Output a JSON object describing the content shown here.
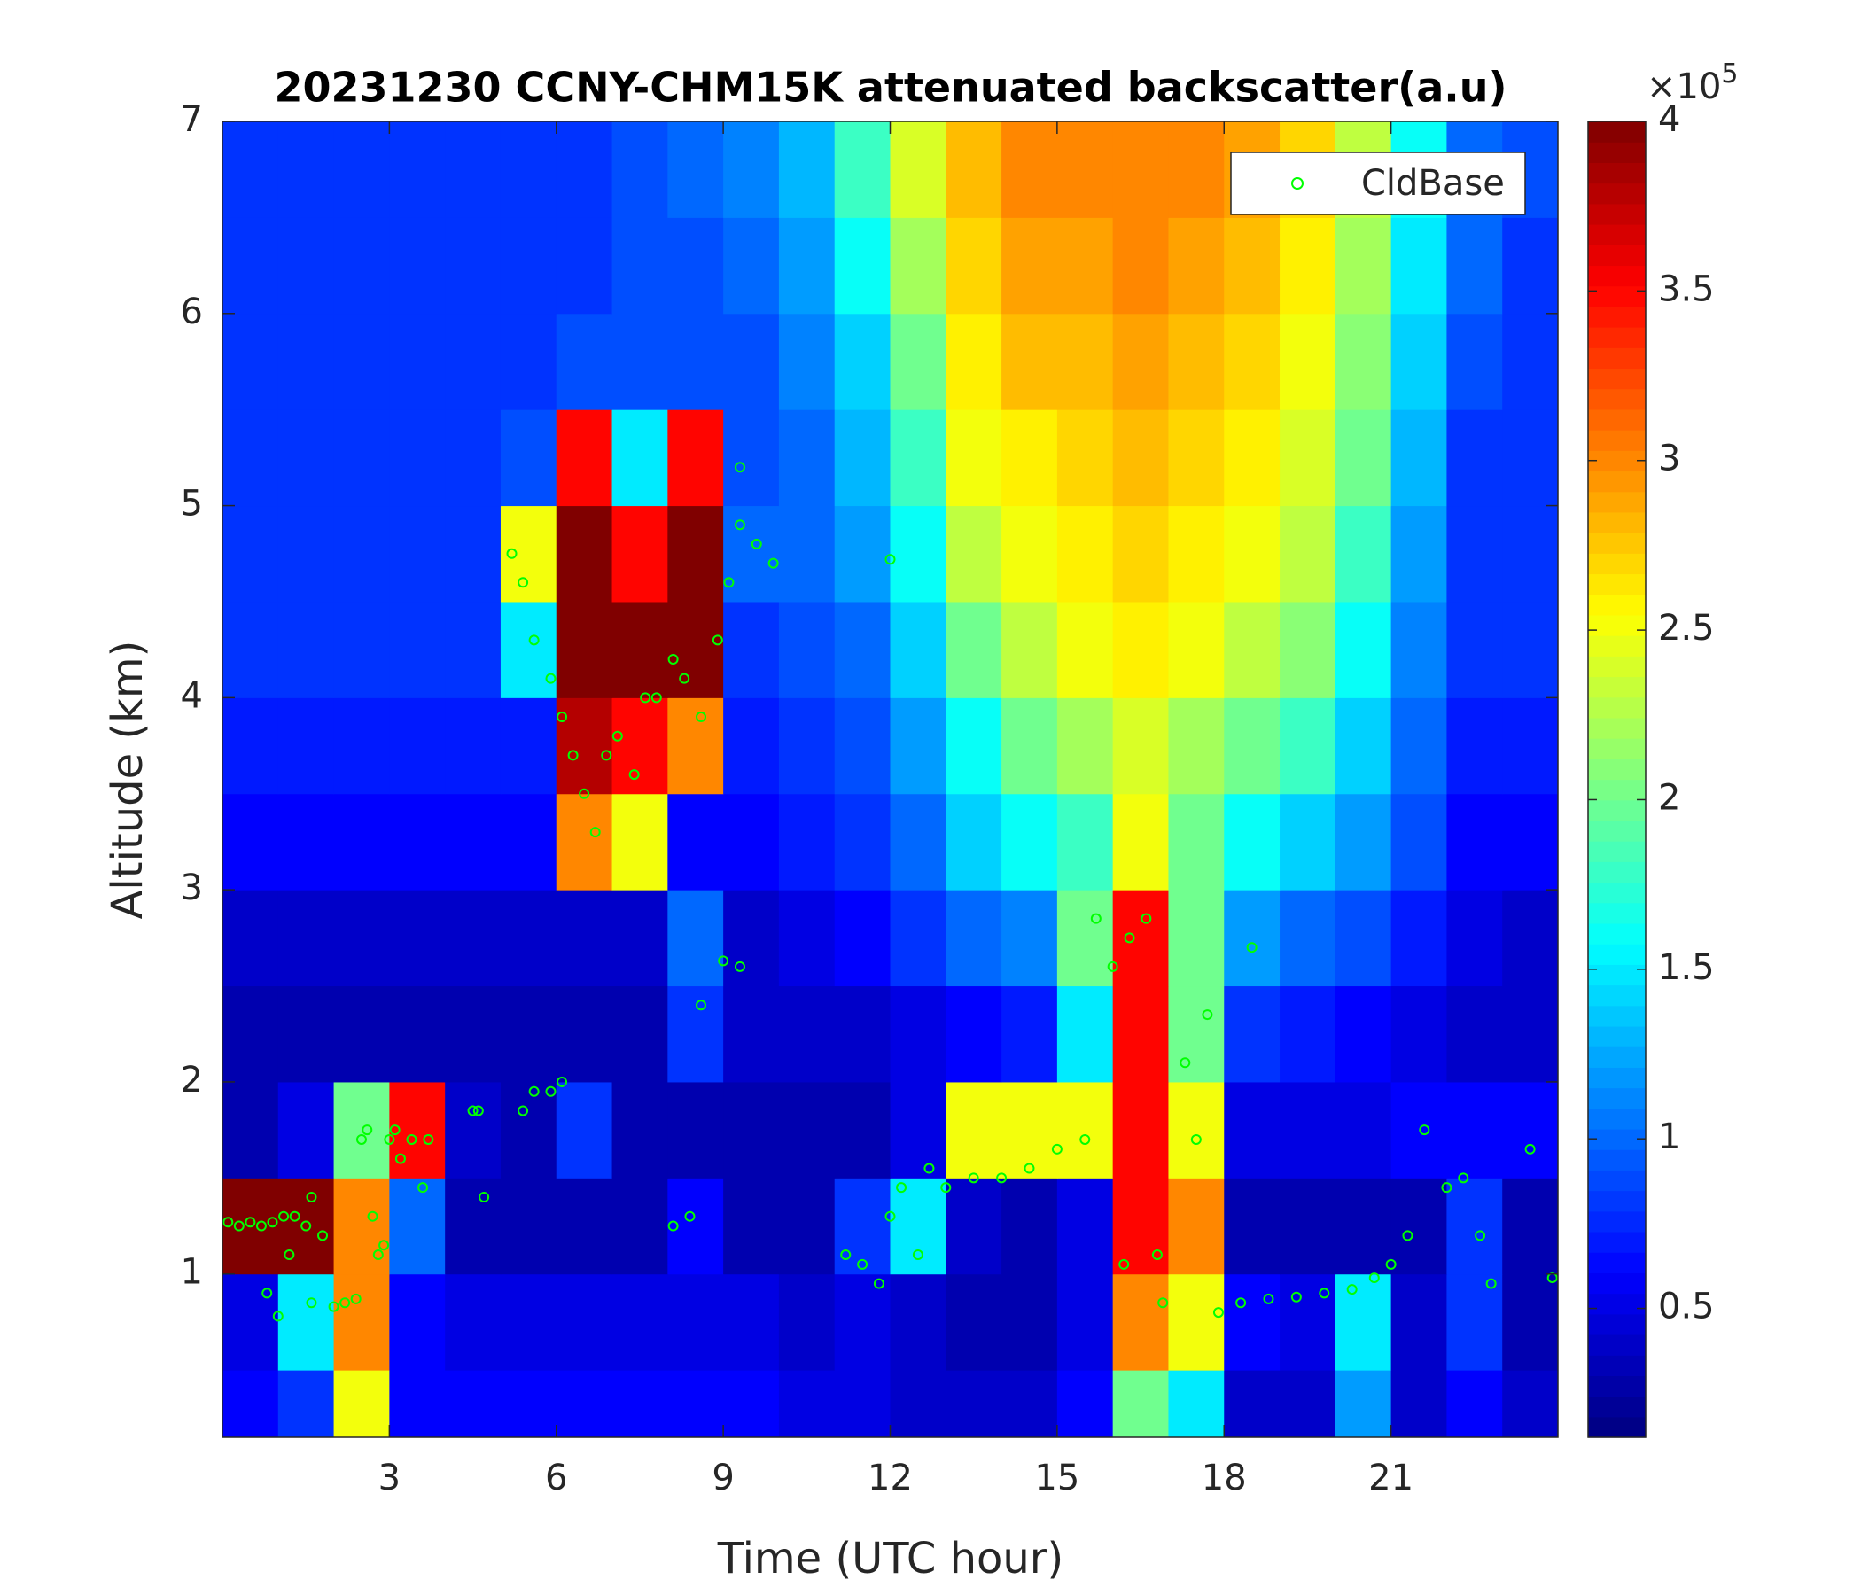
{
  "chart_data": {
    "type": "heatmap",
    "title": "20231230 CCNY-CHM15K attenuated backscatter(a.u)",
    "x_label": "Time (UTC hour)",
    "y_label": "Altitude (km)",
    "xlim": [
      0,
      24
    ],
    "ylim": [
      0.15,
      7
    ],
    "xticks": [
      3,
      6,
      9,
      12,
      15,
      18,
      21
    ],
    "yticks": [
      1,
      2,
      3,
      4,
      5,
      6,
      7
    ],
    "colormap": "jet",
    "clim": [
      0.12,
      4
    ],
    "cticks": [
      0.5,
      1,
      1.5,
      2,
      2.5,
      3,
      3.5,
      4
    ],
    "colorbar_multiplier": "×10",
    "colorbar_exponent": "5",
    "x_edges": [
      0,
      1,
      2,
      3,
      4,
      5,
      6,
      7,
      8,
      9,
      10,
      11,
      12,
      13,
      14,
      15,
      16,
      17,
      18,
      19,
      20,
      21,
      22,
      23,
      24
    ],
    "y_edges": [
      0.15,
      0.5,
      1,
      1.5,
      2,
      2.5,
      3,
      3.5,
      4,
      4.5,
      5,
      5.5,
      6,
      6.5,
      7
    ],
    "z": [
      [
        0.6,
        0.8,
        2.5,
        0.6,
        0.6,
        0.6,
        0.6,
        0.6,
        0.6,
        0.6,
        0.5,
        0.5,
        0.4,
        0.4,
        0.4,
        0.6,
        2.0,
        1.5,
        0.4,
        0.4,
        1.2,
        0.4,
        0.6,
        0.4
      ],
      [
        0.5,
        1.5,
        3.0,
        0.6,
        0.5,
        0.5,
        0.5,
        0.5,
        0.5,
        0.5,
        0.4,
        0.5,
        0.4,
        0.3,
        0.3,
        0.5,
        3.0,
        2.5,
        0.6,
        0.5,
        1.5,
        0.4,
        0.8,
        0.3
      ],
      [
        4,
        4,
        3,
        1.0,
        0.3,
        0.3,
        0.3,
        0.3,
        0.6,
        0.3,
        0.3,
        0.8,
        1.5,
        0.4,
        0.3,
        0.5,
        3.5,
        3,
        0.3,
        0.3,
        0.3,
        0.3,
        0.8,
        0.3
      ],
      [
        0.3,
        0.5,
        2,
        3.5,
        0.4,
        0.3,
        0.8,
        0.3,
        0.3,
        0.3,
        0.3,
        0.3,
        0.5,
        2.5,
        2.5,
        2.5,
        3.5,
        2.5,
        0.5,
        0.5,
        0.5,
        0.6,
        0.6,
        0.6
      ],
      [
        0.3,
        0.3,
        0.3,
        0.3,
        0.3,
        0.3,
        0.3,
        0.3,
        0.8,
        0.4,
        0.4,
        0.4,
        0.5,
        0.6,
        0.7,
        1.5,
        3.5,
        2.0,
        0.8,
        0.7,
        0.6,
        0.5,
        0.4,
        0.4
      ],
      [
        0.4,
        0.4,
        0.4,
        0.4,
        0.4,
        0.4,
        0.4,
        0.4,
        1.0,
        0.4,
        0.5,
        0.6,
        0.8,
        1.0,
        1.1,
        2.0,
        3.5,
        2.0,
        1.2,
        1.0,
        0.9,
        0.7,
        0.5,
        0.4
      ],
      [
        0.6,
        0.6,
        0.6,
        0.6,
        0.6,
        0.6,
        3.0,
        2.5,
        0.6,
        0.6,
        0.7,
        0.8,
        1.0,
        1.4,
        1.6,
        1.8,
        2.5,
        2.0,
        1.6,
        1.4,
        1.2,
        0.9,
        0.6,
        0.6
      ],
      [
        0.7,
        0.7,
        0.7,
        0.7,
        0.7,
        0.7,
        3.8,
        3.5,
        3.0,
        0.7,
        0.8,
        0.9,
        1.2,
        1.6,
        2.0,
        2.2,
        2.4,
        2.2,
        2.0,
        1.8,
        1.4,
        1.0,
        0.7,
        0.7
      ],
      [
        0.8,
        0.8,
        0.8,
        0.8,
        0.8,
        1.5,
        4,
        4,
        4,
        0.8,
        0.9,
        1.0,
        1.4,
        2.0,
        2.3,
        2.5,
        2.6,
        2.5,
        2.3,
        2.1,
        1.6,
        1.1,
        0.8,
        0.8
      ],
      [
        0.8,
        0.8,
        0.8,
        0.8,
        0.8,
        2.5,
        4,
        3.5,
        4,
        1.0,
        1.0,
        1.2,
        1.6,
        2.3,
        2.5,
        2.6,
        2.7,
        2.6,
        2.5,
        2.3,
        1.8,
        1.2,
        0.8,
        0.8
      ],
      [
        0.8,
        0.8,
        0.8,
        0.8,
        0.8,
        0.9,
        3.5,
        1.5,
        3.5,
        0.9,
        1.0,
        1.3,
        1.8,
        2.5,
        2.6,
        2.7,
        2.8,
        2.7,
        2.6,
        2.4,
        2.0,
        1.3,
        0.8,
        0.8
      ],
      [
        0.8,
        0.8,
        0.8,
        0.8,
        0.8,
        0.8,
        0.9,
        0.9,
        0.9,
        0.9,
        1.1,
        1.4,
        2.0,
        2.6,
        2.8,
        2.8,
        2.9,
        2.8,
        2.7,
        2.5,
        2.1,
        1.4,
        0.9,
        0.8
      ],
      [
        0.8,
        0.8,
        0.8,
        0.8,
        0.8,
        0.8,
        0.8,
        0.9,
        0.9,
        1.0,
        1.2,
        1.6,
        2.2,
        2.7,
        2.9,
        2.9,
        3.0,
        2.9,
        2.8,
        2.6,
        2.2,
        1.5,
        1.0,
        0.8
      ],
      [
        0.8,
        0.8,
        0.8,
        0.8,
        0.8,
        0.8,
        0.8,
        0.9,
        1.0,
        1.1,
        1.3,
        1.8,
        2.4,
        2.8,
        3.0,
        3.0,
        3.0,
        3.0,
        2.9,
        2.7,
        2.3,
        1.6,
        1.0,
        0.9
      ]
    ],
    "legend": "northeast",
    "series": [
      {
        "name": "CldBase",
        "type": "scatter",
        "color": "#00ff00",
        "x": [
          0.1,
          0.3,
          0.5,
          0.7,
          0.9,
          1.1,
          1.3,
          0.8,
          1.0,
          1.2,
          1.5,
          1.6,
          1.6,
          1.8,
          2.0,
          2.2,
          2.4,
          2.5,
          2.6,
          2.7,
          2.8,
          2.9,
          3.0,
          3.1,
          3.2,
          3.4,
          3.6,
          3.7,
          4.5,
          4.6,
          4.7,
          5.4,
          5.6,
          5.9,
          6.1,
          5.2,
          5.4,
          5.6,
          5.9,
          6.1,
          6.3,
          6.5,
          6.7,
          6.9,
          7.1,
          7.4,
          7.6,
          7.8,
          8.1,
          8.3,
          8.6,
          8.9,
          9.1,
          9.3,
          9.6,
          9.9,
          9.3,
          8.1,
          8.4,
          8.6,
          9.0,
          9.3,
          12.0,
          11.2,
          11.5,
          11.8,
          12.0,
          12.2,
          12.5,
          12.7,
          13.0,
          13.5,
          14.0,
          14.5,
          15.0,
          15.5,
          15.7,
          16.0,
          16.3,
          16.6,
          16.8,
          16.9,
          17.3,
          17.5,
          17.7,
          17.9,
          18.3,
          18.8,
          19.3,
          19.8,
          20.3,
          20.7,
          21.0,
          21.3,
          21.6,
          22.0,
          22.3,
          22.6,
          22.8,
          23.5,
          23.9,
          18.5,
          16.2
        ],
        "values": [
          1.27,
          1.25,
          1.27,
          1.25,
          1.27,
          1.3,
          1.3,
          0.9,
          0.78,
          1.1,
          1.25,
          1.4,
          0.85,
          1.2,
          0.83,
          0.85,
          0.87,
          1.7,
          1.75,
          1.3,
          1.1,
          1.15,
          1.7,
          1.75,
          1.6,
          1.7,
          1.45,
          1.7,
          1.85,
          1.85,
          1.4,
          1.85,
          1.95,
          1.95,
          2.0,
          4.75,
          4.6,
          4.3,
          4.1,
          3.9,
          3.7,
          3.5,
          3.3,
          3.7,
          3.8,
          3.6,
          4.0,
          4.0,
          4.2,
          4.1,
          3.9,
          4.3,
          4.6,
          4.9,
          4.8,
          4.7,
          5.2,
          1.25,
          1.3,
          2.4,
          2.63,
          2.6,
          4.72,
          1.1,
          1.05,
          0.95,
          1.3,
          1.45,
          1.1,
          1.55,
          1.45,
          1.5,
          1.5,
          1.55,
          1.65,
          1.7,
          2.85,
          2.6,
          2.75,
          2.85,
          1.1,
          0.85,
          2.1,
          1.7,
          2.35,
          0.8,
          0.85,
          0.87,
          0.88,
          0.9,
          0.92,
          0.98,
          1.05,
          1.2,
          1.75,
          1.45,
          1.5,
          1.2,
          0.95,
          1.65,
          0.98,
          2.7,
          1.05
        ]
      }
    ]
  }
}
